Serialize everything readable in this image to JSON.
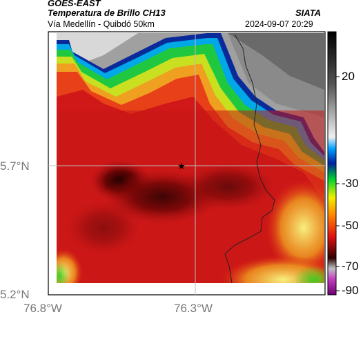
{
  "header": {
    "satellite": "GOES-EAST",
    "product": "Temperatura de Brillo CH13",
    "route": "Vía Medellín - Quibdó 50km",
    "brand": "SIATA",
    "timestamp": "2024-09-07 20:29"
  },
  "axes": {
    "lat_ticks": [
      "5.7°N",
      "5.2°N"
    ],
    "lon_ticks": [
      "76.8°W",
      "76.3°W"
    ]
  },
  "colorbar": {
    "labels": [
      "20",
      "-30",
      "-50",
      "-70",
      "-90"
    ]
  },
  "markers": [
    {
      "name": "station-star",
      "symbol": "★"
    }
  ]
}
